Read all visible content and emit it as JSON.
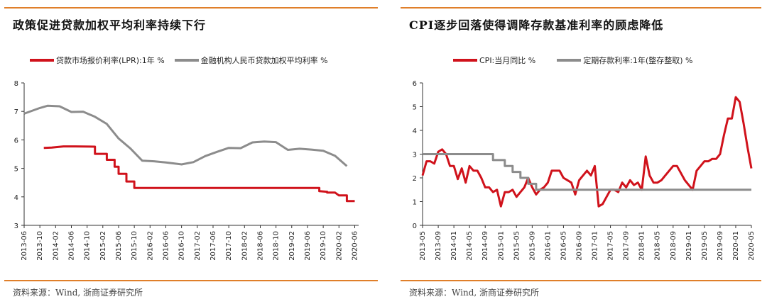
{
  "chart_data": [
    {
      "type": "line",
      "title": "政策促进贷款加权平均利率持续下行",
      "source": "资料来源：Wind, 浙商证券研究所",
      "ylim": [
        3,
        8
      ],
      "yticks": [
        "3",
        "4",
        "5",
        "6",
        "7",
        "8"
      ],
      "xlim": [
        2013.417,
        2020.5
      ],
      "xticks": [
        {
          "label": "2013-06",
          "t": 2013.417
        },
        {
          "label": "2013-10",
          "t": 2013.75
        },
        {
          "label": "2014-02",
          "t": 2014.083
        },
        {
          "label": "2014-06",
          "t": 2014.417
        },
        {
          "label": "2014-10",
          "t": 2014.75
        },
        {
          "label": "2015-02",
          "t": 2015.083
        },
        {
          "label": "2015-06",
          "t": 2015.417
        },
        {
          "label": "2015-10",
          "t": 2015.75
        },
        {
          "label": "2016-02",
          "t": 2016.083
        },
        {
          "label": "2016-06",
          "t": 2016.417
        },
        {
          "label": "2016-10",
          "t": 2016.75
        },
        {
          "label": "2017-02",
          "t": 2017.083
        },
        {
          "label": "2017-06",
          "t": 2017.417
        },
        {
          "label": "2017-10",
          "t": 2017.75
        },
        {
          "label": "2018-02",
          "t": 2018.083
        },
        {
          "label": "2018-06",
          "t": 2018.417
        },
        {
          "label": "2018-10",
          "t": 2018.75
        },
        {
          "label": "2019-02",
          "t": 2019.083
        },
        {
          "label": "2019-06",
          "t": 2019.417
        },
        {
          "label": "2019-10",
          "t": 2019.75
        },
        {
          "label": "2020-02",
          "t": 2020.083
        },
        {
          "label": "2020-06",
          "t": 2020.417
        }
      ],
      "series": [
        {
          "name": "贷款市场报价利率(LPR):1年 %",
          "color": "#d0121b",
          "step": true,
          "points": [
            [
              2013.833,
              5.72
            ],
            [
              2014.0,
              5.73
            ],
            [
              2014.25,
              5.77
            ],
            [
              2014.5,
              5.77
            ],
            [
              2014.917,
              5.76
            ],
            [
              2014.917,
              5.51
            ],
            [
              2015.167,
              5.51
            ],
            [
              2015.167,
              5.3
            ],
            [
              2015.333,
              5.3
            ],
            [
              2015.333,
              5.06
            ],
            [
              2015.417,
              5.06
            ],
            [
              2015.417,
              4.81
            ],
            [
              2015.583,
              4.81
            ],
            [
              2015.583,
              4.54
            ],
            [
              2015.75,
              4.54
            ],
            [
              2015.75,
              4.31
            ],
            [
              2017.5,
              4.31
            ],
            [
              2018.0,
              4.31
            ],
            [
              2018.5,
              4.31
            ],
            [
              2019.0,
              4.31
            ],
            [
              2019.667,
              4.31
            ],
            [
              2019.667,
              4.2
            ],
            [
              2019.833,
              4.18
            ],
            [
              2019.833,
              4.15
            ],
            [
              2020.0,
              4.15
            ],
            [
              2020.083,
              4.05
            ],
            [
              2020.25,
              4.05
            ],
            [
              2020.25,
              3.85
            ],
            [
              2020.417,
              3.85
            ]
          ]
        },
        {
          "name": "金融机构人民币贷款加权平均利率 %",
          "color": "#8c8c8c",
          "step": false,
          "points": [
            [
              2013.417,
              6.92
            ],
            [
              2013.75,
              7.12
            ],
            [
              2013.917,
              7.2
            ],
            [
              2014.167,
              7.18
            ],
            [
              2014.417,
              6.98
            ],
            [
              2014.667,
              6.99
            ],
            [
              2014.917,
              6.81
            ],
            [
              2015.167,
              6.56
            ],
            [
              2015.417,
              6.05
            ],
            [
              2015.667,
              5.7
            ],
            [
              2015.917,
              5.27
            ],
            [
              2016.167,
              5.25
            ],
            [
              2016.417,
              5.21
            ],
            [
              2016.75,
              5.14
            ],
            [
              2017.0,
              5.22
            ],
            [
              2017.25,
              5.43
            ],
            [
              2017.5,
              5.58
            ],
            [
              2017.75,
              5.72
            ],
            [
              2018.0,
              5.71
            ],
            [
              2018.25,
              5.91
            ],
            [
              2018.5,
              5.94
            ],
            [
              2018.75,
              5.92
            ],
            [
              2019.0,
              5.65
            ],
            [
              2019.25,
              5.69
            ],
            [
              2019.5,
              5.66
            ],
            [
              2019.75,
              5.62
            ],
            [
              2020.0,
              5.44
            ],
            [
              2020.25,
              5.08
            ]
          ]
        }
      ]
    },
    {
      "type": "line",
      "title": "CPI逐步回落使得调降存款基准利率的顾虑降低",
      "source": "资料来源：Wind, 浙商证券研究所",
      "ylim": [
        0,
        6
      ],
      "yticks": [
        "0",
        "1",
        "2",
        "3",
        "4",
        "5",
        "6"
      ],
      "xlim": [
        2013.333,
        2020.333
      ],
      "xticks": [
        {
          "label": "2013-05",
          "t": 2013.333
        },
        {
          "label": "2013-09",
          "t": 2013.667
        },
        {
          "label": "2014-01",
          "t": 2014.0
        },
        {
          "label": "2014-05",
          "t": 2014.333
        },
        {
          "label": "2014-09",
          "t": 2014.667
        },
        {
          "label": "2015-01",
          "t": 2015.0
        },
        {
          "label": "2015-05",
          "t": 2015.333
        },
        {
          "label": "2015-09",
          "t": 2015.667
        },
        {
          "label": "2016-01",
          "t": 2016.0
        },
        {
          "label": "2016-05",
          "t": 2016.333
        },
        {
          "label": "2016-09",
          "t": 2016.667
        },
        {
          "label": "2017-01",
          "t": 2017.0
        },
        {
          "label": "2017-05",
          "t": 2017.333
        },
        {
          "label": "2017-09",
          "t": 2017.667
        },
        {
          "label": "2018-01",
          "t": 2018.0
        },
        {
          "label": "2018-05",
          "t": 2018.333
        },
        {
          "label": "2018-09",
          "t": 2018.667
        },
        {
          "label": "2019-01",
          "t": 2019.0
        },
        {
          "label": "2019-05",
          "t": 2019.333
        },
        {
          "label": "2019-09",
          "t": 2019.667
        },
        {
          "label": "2020-01",
          "t": 2020.0
        },
        {
          "label": "2020-05",
          "t": 2020.333
        }
      ],
      "series": [
        {
          "name": "CPI:当月同比 %",
          "color": "#d0121b",
          "step": false,
          "points": [
            [
              2013.333,
              2.1
            ],
            [
              2013.417,
              2.7
            ],
            [
              2013.5,
              2.7
            ],
            [
              2013.583,
              2.6
            ],
            [
              2013.667,
              3.1
            ],
            [
              2013.75,
              3.2
            ],
            [
              2013.833,
              3.0
            ],
            [
              2013.917,
              2.5
            ],
            [
              2014.0,
              2.5
            ],
            [
              2014.083,
              1.95
            ],
            [
              2014.167,
              2.4
            ],
            [
              2014.25,
              1.8
            ],
            [
              2014.333,
              2.5
            ],
            [
              2014.417,
              2.3
            ],
            [
              2014.5,
              2.3
            ],
            [
              2014.583,
              2.0
            ],
            [
              2014.667,
              1.6
            ],
            [
              2014.75,
              1.6
            ],
            [
              2014.833,
              1.4
            ],
            [
              2014.917,
              1.5
            ],
            [
              2015.0,
              0.8
            ],
            [
              2015.083,
              1.4
            ],
            [
              2015.167,
              1.4
            ],
            [
              2015.25,
              1.5
            ],
            [
              2015.333,
              1.2
            ],
            [
              2015.417,
              1.4
            ],
            [
              2015.5,
              1.6
            ],
            [
              2015.583,
              2.0
            ],
            [
              2015.667,
              1.6
            ],
            [
              2015.75,
              1.3
            ],
            [
              2015.833,
              1.5
            ],
            [
              2015.917,
              1.6
            ],
            [
              2016.0,
              1.8
            ],
            [
              2016.083,
              2.3
            ],
            [
              2016.167,
              2.3
            ],
            [
              2016.25,
              2.3
            ],
            [
              2016.333,
              2.0
            ],
            [
              2016.417,
              1.9
            ],
            [
              2016.5,
              1.8
            ],
            [
              2016.583,
              1.3
            ],
            [
              2016.667,
              1.9
            ],
            [
              2016.75,
              2.1
            ],
            [
              2016.833,
              2.3
            ],
            [
              2016.917,
              2.1
            ],
            [
              2017.0,
              2.5
            ],
            [
              2017.083,
              0.8
            ],
            [
              2017.167,
              0.9
            ],
            [
              2017.25,
              1.2
            ],
            [
              2017.333,
              1.5
            ],
            [
              2017.417,
              1.5
            ],
            [
              2017.5,
              1.4
            ],
            [
              2017.583,
              1.8
            ],
            [
              2017.667,
              1.6
            ],
            [
              2017.75,
              1.9
            ],
            [
              2017.833,
              1.7
            ],
            [
              2017.917,
              1.8
            ],
            [
              2018.0,
              1.5
            ],
            [
              2018.083,
              2.9
            ],
            [
              2018.167,
              2.1
            ],
            [
              2018.25,
              1.8
            ],
            [
              2018.333,
              1.8
            ],
            [
              2018.417,
              1.9
            ],
            [
              2018.5,
              2.1
            ],
            [
              2018.583,
              2.3
            ],
            [
              2018.667,
              2.5
            ],
            [
              2018.75,
              2.5
            ],
            [
              2018.833,
              2.2
            ],
            [
              2018.917,
              1.9
            ],
            [
              2019.0,
              1.7
            ],
            [
              2019.083,
              1.5
            ],
            [
              2019.167,
              2.3
            ],
            [
              2019.25,
              2.5
            ],
            [
              2019.333,
              2.7
            ],
            [
              2019.417,
              2.7
            ],
            [
              2019.5,
              2.8
            ],
            [
              2019.583,
              2.8
            ],
            [
              2019.667,
              3.0
            ],
            [
              2019.75,
              3.8
            ],
            [
              2019.833,
              4.5
            ],
            [
              2019.917,
              4.5
            ],
            [
              2020.0,
              5.4
            ],
            [
              2020.083,
              5.2
            ],
            [
              2020.167,
              4.3
            ],
            [
              2020.25,
              3.3
            ],
            [
              2020.333,
              2.4
            ]
          ]
        },
        {
          "name": "定期存款利率:1年(整存整取) %",
          "color": "#8c8c8c",
          "step": true,
          "points": [
            [
              2013.333,
              3.0
            ],
            [
              2014.833,
              3.0
            ],
            [
              2014.833,
              2.75
            ],
            [
              2015.083,
              2.75
            ],
            [
              2015.083,
              2.5
            ],
            [
              2015.25,
              2.5
            ],
            [
              2015.25,
              2.25
            ],
            [
              2015.417,
              2.25
            ],
            [
              2015.417,
              2.0
            ],
            [
              2015.583,
              2.0
            ],
            [
              2015.583,
              1.75
            ],
            [
              2015.75,
              1.75
            ],
            [
              2015.75,
              1.5
            ],
            [
              2020.333,
              1.5
            ]
          ]
        }
      ]
    }
  ]
}
